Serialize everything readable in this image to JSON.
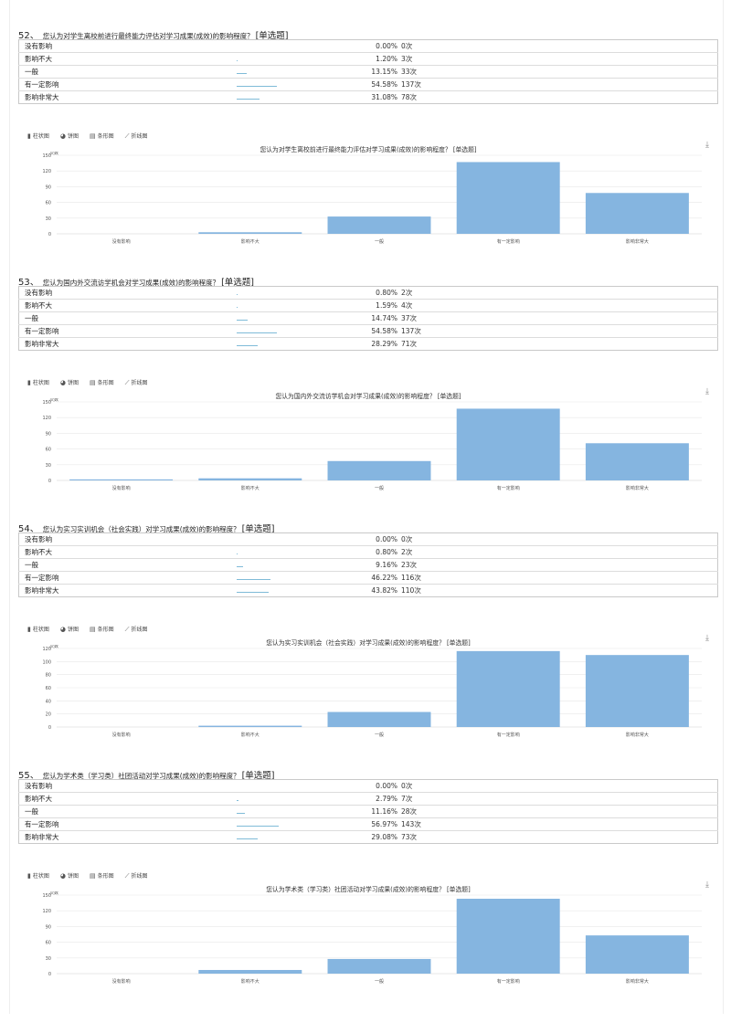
{
  "colors": {
    "bar": "#85b5e0",
    "mini_bar": "#7fbbd8",
    "grid": "#e8e8e8",
    "border": "#c9c9c9"
  },
  "view_tabs": [
    {
      "icon": "bar-chart-icon",
      "label": "柱状图"
    },
    {
      "icon": "pie-chart-icon",
      "label": "饼图"
    },
    {
      "icon": "horizontal-bar-icon",
      "label": "条形图"
    },
    {
      "icon": "line-chart-icon",
      "label": "折线图"
    }
  ],
  "download_icon": "download-icon",
  "questions": [
    {
      "number": "52、",
      "text": "您认为对学生离校前进行最终能力评估对学习成果(成效)的影响程度？",
      "tag": "[单选题]",
      "rows": [
        {
          "option": "没有影响",
          "percent": "0.00%",
          "count": "0次",
          "share": 0.0
        },
        {
          "option": "影响不大",
          "percent": "1.20%",
          "count": "3次",
          "share": 0.012
        },
        {
          "option": "一般",
          "percent": "13.15%",
          "count": "33次",
          "share": 0.1315
        },
        {
          "option": "有一定影响",
          "percent": "54.58%",
          "count": "137次",
          "share": 0.5458
        },
        {
          "option": "影响非常大",
          "percent": "31.08%",
          "count": "78次",
          "share": 0.3108
        }
      ]
    },
    {
      "number": "53、",
      "text": "您认为国内外交流访学机会对学习成果(成效)的影响程度？",
      "tag": "[单选题]",
      "rows": [
        {
          "option": "没有影响",
          "percent": "0.80%",
          "count": "2次",
          "share": 0.008
        },
        {
          "option": "影响不大",
          "percent": "1.59%",
          "count": "4次",
          "share": 0.0159
        },
        {
          "option": "一般",
          "percent": "14.74%",
          "count": "37次",
          "share": 0.1474
        },
        {
          "option": "有一定影响",
          "percent": "54.58%",
          "count": "137次",
          "share": 0.5458
        },
        {
          "option": "影响非常大",
          "percent": "28.29%",
          "count": "71次",
          "share": 0.2829
        }
      ]
    },
    {
      "number": "54、",
      "text": "您认为实习实训机会（社会实践）对学习成果(成效)的影响程度？",
      "tag": "[单选题]",
      "rows": [
        {
          "option": "没有影响",
          "percent": "0.00%",
          "count": "0次",
          "share": 0.0
        },
        {
          "option": "影响不大",
          "percent": "0.80%",
          "count": "2次",
          "share": 0.008
        },
        {
          "option": "一般",
          "percent": "9.16%",
          "count": "23次",
          "share": 0.0916
        },
        {
          "option": "有一定影响",
          "percent": "46.22%",
          "count": "116次",
          "share": 0.4622
        },
        {
          "option": "影响非常大",
          "percent": "43.82%",
          "count": "110次",
          "share": 0.4382
        }
      ]
    },
    {
      "number": "55、",
      "text": "您认为学术类（学习类）社团活动对学习成果(成效)的影响程度？",
      "tag": "[单选题]",
      "rows": [
        {
          "option": "没有影响",
          "percent": "0.00%",
          "count": "0次",
          "share": 0.0
        },
        {
          "option": "影响不大",
          "percent": "2.79%",
          "count": "7次",
          "share": 0.0279
        },
        {
          "option": "一般",
          "percent": "11.16%",
          "count": "28次",
          "share": 0.1116
        },
        {
          "option": "有一定影响",
          "percent": "56.97%",
          "count": "143次",
          "share": 0.5697
        },
        {
          "option": "影响非常大",
          "percent": "29.08%",
          "count": "73次",
          "share": 0.2908
        }
      ]
    }
  ],
  "chart_data": [
    {
      "type": "bar",
      "title": "您认为对学生离校前进行最终能力评估对学习成果(成效)的影响程度？ [单选题]",
      "ylabel": "次数",
      "xlabel": "",
      "categories": [
        "没有影响",
        "影响不大",
        "一般",
        "有一定影响",
        "影响非常大"
      ],
      "values": [
        0,
        3,
        33,
        137,
        78
      ],
      "yticks": [
        0,
        30,
        60,
        90,
        120,
        150
      ],
      "ylim": [
        0,
        150
      ],
      "grid": true,
      "legend": "none"
    },
    {
      "type": "bar",
      "title": "您认为国内外交流访学机会对学习成果(成效)的影响程度？ [单选题]",
      "ylabel": "次数",
      "xlabel": "",
      "categories": [
        "没有影响",
        "影响不大",
        "一般",
        "有一定影响",
        "影响非常大"
      ],
      "values": [
        2,
        4,
        37,
        137,
        71
      ],
      "yticks": [
        0,
        30,
        60,
        90,
        120,
        150
      ],
      "ylim": [
        0,
        150
      ],
      "grid": true,
      "legend": "none"
    },
    {
      "type": "bar",
      "title": "您认为实习实训机会（社会实践）对学习成果(成效)的影响程度？ [单选题]",
      "ylabel": "次数",
      "xlabel": "",
      "categories": [
        "没有影响",
        "影响不大",
        "一般",
        "有一定影响",
        "影响非常大"
      ],
      "values": [
        0,
        2,
        23,
        116,
        110
      ],
      "yticks": [
        0,
        20,
        40,
        60,
        80,
        100,
        120
      ],
      "ylim": [
        0,
        120
      ],
      "grid": true,
      "legend": "none"
    },
    {
      "type": "bar",
      "title": "您认为学术类（学习类）社团活动对学习成果(成效)的影响程度？ [单选题]",
      "ylabel": "次数",
      "xlabel": "",
      "categories": [
        "没有影响",
        "影响不大",
        "一般",
        "有一定影响",
        "影响非常大"
      ],
      "values": [
        0,
        7,
        28,
        143,
        73
      ],
      "yticks": [
        0,
        30,
        60,
        90,
        120,
        150
      ],
      "ylim": [
        0,
        150
      ],
      "grid": true,
      "legend": "none"
    }
  ]
}
